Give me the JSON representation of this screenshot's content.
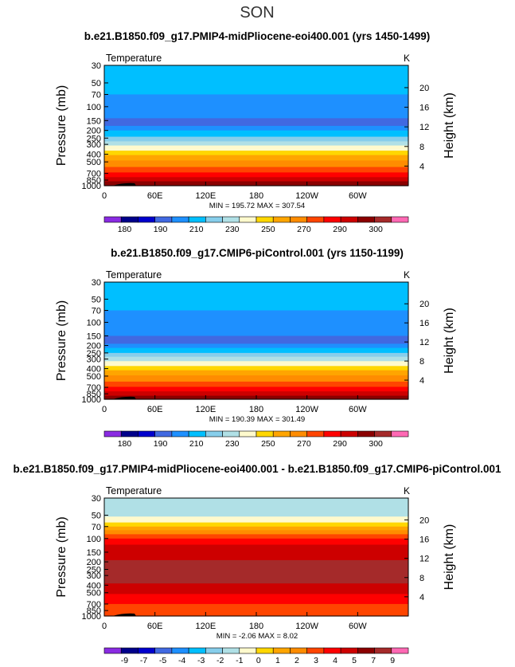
{
  "figure": {
    "season": "SON"
  },
  "chart_data": [
    {
      "type": "heatmap",
      "title": "b.e21.B1850.f09_g17.PMIP4-midPliocene-eoi400.001 (yrs 1450-1499)",
      "variable": "Temperature",
      "units": "K",
      "ylabel": "Pressure (mb)",
      "ylabel_right": "Height (km)",
      "x_ticks": [
        "0",
        "60E",
        "120E",
        "180",
        "120W",
        "60W"
      ],
      "y_ticks": [
        "30",
        "50",
        "70",
        "100",
        "150",
        "200",
        "250",
        "300",
        "400",
        "500",
        "700",
        "850",
        "1000"
      ],
      "height_ticks": [
        "20",
        "16",
        "12",
        "8",
        "4"
      ],
      "y_scale": "log",
      "ylim": [
        1000,
        30
      ],
      "min": "195.72",
      "max": "307.54",
      "stats_label": "MIN = 195.72   MAX = 307.54",
      "colorbar_labels": [
        "180",
        "190",
        "210",
        "230",
        "250",
        "270",
        "290",
        "300"
      ],
      "colorbar_colors": [
        "#8a2be2",
        "#00008b",
        "#0000cd",
        "#4169e1",
        "#1e90ff",
        "#00bfff",
        "#87ceeb",
        "#b0e0e6",
        "#fffacd",
        "#ffd700",
        "#ffa500",
        "#ff8c00",
        "#ff4500",
        "#ff0000",
        "#cd0000",
        "#8b0000",
        "#a52a2a",
        "#ff69b4"
      ],
      "band_boundaries_mb": [
        30,
        70,
        140,
        175,
        200,
        240,
        275,
        310,
        360,
        410,
        480,
        580,
        680,
        780,
        880,
        1000
      ],
      "band_colors": [
        "#00bfff",
        "#1e90ff",
        "#4169e1",
        "#1e90ff",
        "#00bfff",
        "#87ceeb",
        "#b0e0e6",
        "#fffacd",
        "#ffd700",
        "#ffa500",
        "#ff8c00",
        "#ff4500",
        "#ff0000",
        "#cd0000",
        "#8b0000"
      ]
    },
    {
      "type": "heatmap",
      "title": "b.e21.B1850.f09_g17.CMIP6-piControl.001 (yrs 1150-1199)",
      "variable": "Temperature",
      "units": "K",
      "ylabel": "Pressure (mb)",
      "ylabel_right": "Height (km)",
      "x_ticks": [
        "0",
        "60E",
        "120E",
        "180",
        "120W",
        "60W"
      ],
      "y_ticks": [
        "30",
        "50",
        "70",
        "100",
        "150",
        "200",
        "250",
        "300",
        "400",
        "500",
        "700",
        "850",
        "1000"
      ],
      "height_ticks": [
        "20",
        "16",
        "12",
        "8",
        "4"
      ],
      "y_scale": "log",
      "ylim": [
        1000,
        30
      ],
      "min": "190.39",
      "max": "301.49",
      "stats_label": "MIN = 190.39   MAX = 301.49",
      "colorbar_labels": [
        "180",
        "190",
        "210",
        "230",
        "250",
        "270",
        "290",
        "300"
      ],
      "colorbar_colors": [
        "#8a2be2",
        "#00008b",
        "#0000cd",
        "#4169e1",
        "#1e90ff",
        "#00bfff",
        "#87ceeb",
        "#b0e0e6",
        "#fffacd",
        "#ffd700",
        "#ffa500",
        "#ff8c00",
        "#ff4500",
        "#ff0000",
        "#cd0000",
        "#8b0000",
        "#a52a2a",
        "#ff69b4"
      ],
      "band_boundaries_mb": [
        30,
        70,
        150,
        190,
        215,
        250,
        280,
        320,
        370,
        420,
        490,
        590,
        690,
        790,
        900,
        1000
      ],
      "band_colors": [
        "#00bfff",
        "#1e90ff",
        "#4169e1",
        "#1e90ff",
        "#00bfff",
        "#87ceeb",
        "#b0e0e6",
        "#fffacd",
        "#ffd700",
        "#ffa500",
        "#ff8c00",
        "#ff4500",
        "#ff0000",
        "#cd0000",
        "#8b0000"
      ]
    },
    {
      "type": "heatmap",
      "title": "b.e21.B1850.f09_g17.PMIP4-midPliocene-eoi400.001 - b.e21.B1850.f09_g17.CMIP6-piControl.001",
      "variable": "Temperature",
      "units": "K",
      "ylabel": "Pressure (mb)",
      "ylabel_right": "Height (km)",
      "x_ticks": [
        "0",
        "60E",
        "120E",
        "180",
        "120W",
        "60W"
      ],
      "y_ticks": [
        "30",
        "50",
        "70",
        "100",
        "150",
        "200",
        "250",
        "300",
        "400",
        "500",
        "700",
        "850",
        "1000"
      ],
      "height_ticks": [
        "20",
        "16",
        "12",
        "8",
        "4"
      ],
      "y_scale": "log",
      "ylim": [
        1000,
        30
      ],
      "min": "-2.06",
      "max": "8.02",
      "stats_label": "MIN = -2.06   MAX = 8.02",
      "colorbar_labels": [
        "-9",
        "-7",
        "-5",
        "-4",
        "-3",
        "-2",
        "-1",
        "0",
        "1",
        "2",
        "3",
        "4",
        "5",
        "7",
        "9"
      ],
      "colorbar_colors": [
        "#8a2be2",
        "#00008b",
        "#0000cd",
        "#4169e1",
        "#1e90ff",
        "#00bfff",
        "#87ceeb",
        "#b0e0e6",
        "#fffacd",
        "#ffd700",
        "#ffa500",
        "#ff8c00",
        "#ff4500",
        "#ff0000",
        "#cd0000",
        "#8b0000",
        "#a52a2a",
        "#ff69b4"
      ],
      "band_boundaries_mb": [
        30,
        52,
        62,
        70,
        78,
        88,
        100,
        120,
        190,
        380,
        520,
        700,
        1000
      ],
      "band_colors": [
        "#b0e0e6",
        "#fffacd",
        "#ffd700",
        "#ffa500",
        "#ff8c00",
        "#ff4500",
        "#ff0000",
        "#cd0000",
        "#a52a2a",
        "#cd0000",
        "#ff0000",
        "#ff4500"
      ]
    }
  ]
}
